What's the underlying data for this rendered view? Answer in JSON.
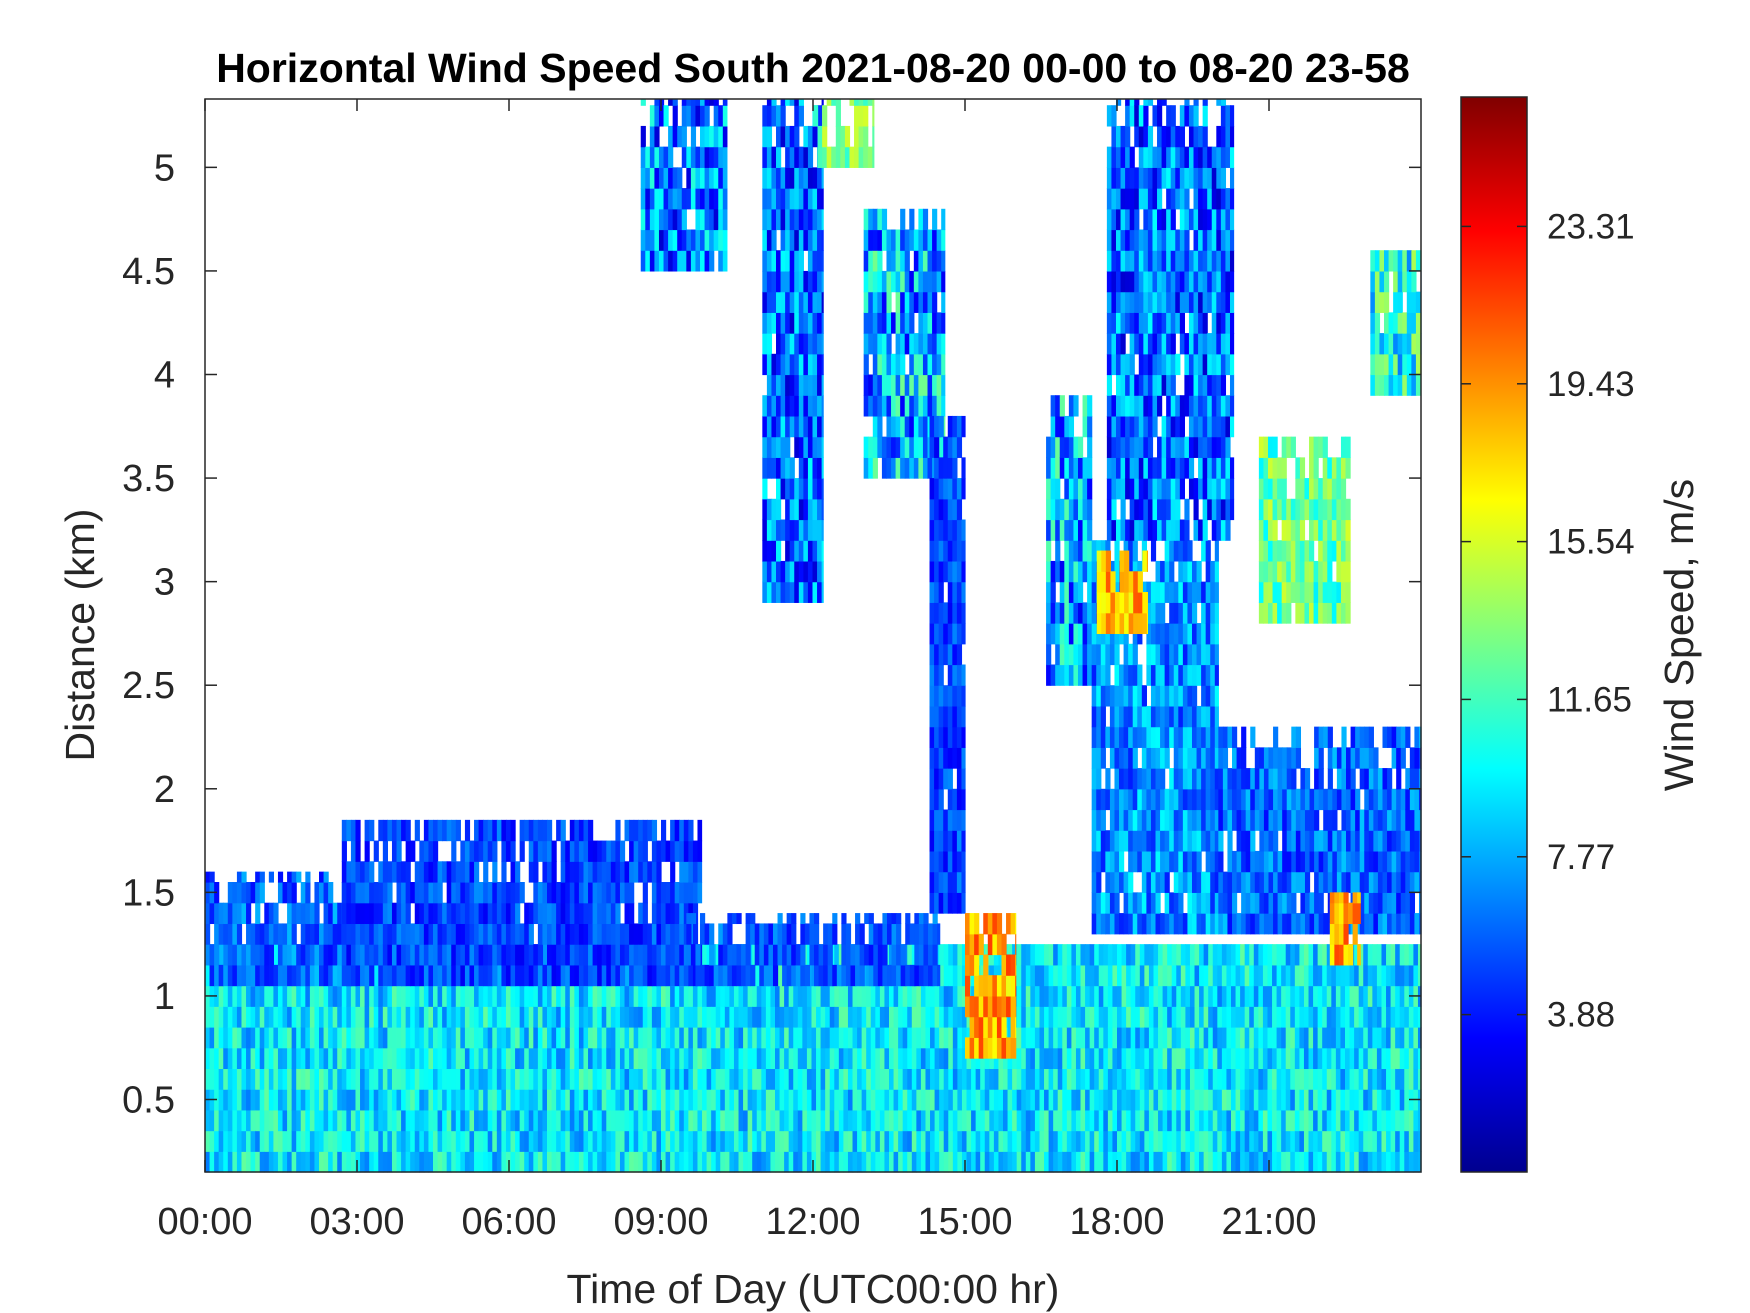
{
  "chart_data": {
    "type": "heatmap",
    "title": "Horizontal Wind Speed South 2021-08-20 00-00 to 08-20 23-58",
    "xlabel": "Time of Day (UTC00:00 hr)",
    "ylabel": "Distance (km)",
    "colorbar_label": "Wind Speed, m/s",
    "xlim": [
      0,
      24
    ],
    "ylim": [
      0.15,
      5.33
    ],
    "colorbar_range": [
      0,
      26.5
    ],
    "colormap": "jet",
    "x_ticks": [
      {
        "value": 0,
        "label": "00:00"
      },
      {
        "value": 3,
        "label": "03:00"
      },
      {
        "value": 6,
        "label": "06:00"
      },
      {
        "value": 9,
        "label": "09:00"
      },
      {
        "value": 12,
        "label": "12:00"
      },
      {
        "value": 15,
        "label": "15:00"
      },
      {
        "value": 18,
        "label": "18:00"
      },
      {
        "value": 21,
        "label": "21:00"
      }
    ],
    "y_ticks": [
      {
        "value": 0.5,
        "label": "0.5"
      },
      {
        "value": 1,
        "label": "1"
      },
      {
        "value": 1.5,
        "label": "1.5"
      },
      {
        "value": 2,
        "label": "2"
      },
      {
        "value": 2.5,
        "label": "2.5"
      },
      {
        "value": 3,
        "label": "3"
      },
      {
        "value": 3.5,
        "label": "3.5"
      },
      {
        "value": 4,
        "label": "4"
      },
      {
        "value": 4.5,
        "label": "4.5"
      },
      {
        "value": 5,
        "label": "5"
      }
    ],
    "colorbar_ticks": [
      {
        "value": 3.88,
        "label": "3.88"
      },
      {
        "value": 7.77,
        "label": "7.77"
      },
      {
        "value": 11.65,
        "label": "11.65"
      },
      {
        "value": 15.54,
        "label": "15.54"
      },
      {
        "value": 19.43,
        "label": "19.43"
      },
      {
        "value": 23.31,
        "label": "23.31"
      }
    ],
    "regions": [
      {
        "name": "boundary-layer",
        "t0": 0,
        "t1": 24,
        "z0": 0.15,
        "z1": 1.25,
        "v": 9.5,
        "var": 3.0
      },
      {
        "name": "morning-upper-layer",
        "t0": 0,
        "t1": 3.0,
        "z0": 1.05,
        "z1": 1.6,
        "v": 6.0,
        "var": 2.5
      },
      {
        "name": "mid-morning-layer",
        "t0": 2.7,
        "t1": 9.8,
        "z0": 1.05,
        "z1": 1.85,
        "v": 5.0,
        "var": 2.0
      },
      {
        "name": "late-morning-layer",
        "t0": 9.5,
        "t1": 14.5,
        "z0": 1.05,
        "z1": 1.4,
        "v": 5.5,
        "var": 2.0
      },
      {
        "name": "upper-plume-a",
        "t0": 8.6,
        "t1": 10.3,
        "z0": 4.5,
        "z1": 5.33,
        "v": 6.5,
        "var": 4.5
      },
      {
        "name": "upper-plume-b",
        "t0": 11.0,
        "t1": 12.2,
        "z0": 2.9,
        "z1": 5.33,
        "v": 6.0,
        "var": 4.0
      },
      {
        "name": "upper-plume-c",
        "t0": 12.0,
        "t1": 13.2,
        "z0": 5.0,
        "z1": 5.33,
        "v": 13.0,
        "var": 2.5
      },
      {
        "name": "upper-plume-d",
        "t0": 13.0,
        "t1": 14.6,
        "z0": 3.5,
        "z1": 4.8,
        "v": 8.0,
        "var": 5.0
      },
      {
        "name": "descending-plume",
        "t0": 14.3,
        "t1": 15.0,
        "z0": 1.4,
        "z1": 3.8,
        "v": 5.0,
        "var": 2.0
      },
      {
        "name": "evening-column-a",
        "t0": 16.6,
        "t1": 17.5,
        "z0": 2.5,
        "z1": 3.9,
        "v": 8.0,
        "var": 5.0
      },
      {
        "name": "evening-column-b",
        "t0": 17.5,
        "t1": 20.0,
        "z0": 1.3,
        "z1": 3.2,
        "v": 7.0,
        "var": 3.0
      },
      {
        "name": "evening-upper",
        "t0": 17.8,
        "t1": 20.3,
        "z0": 3.2,
        "z1": 5.33,
        "v": 6.0,
        "var": 4.0
      },
      {
        "name": "night-layer",
        "t0": 20.0,
        "t1": 24,
        "z0": 1.3,
        "z1": 2.3,
        "v": 6.0,
        "var": 2.5
      },
      {
        "name": "night-upper-a",
        "t0": 20.8,
        "t1": 22.6,
        "z0": 2.8,
        "z1": 3.7,
        "v": 12.5,
        "var": 3.0
      },
      {
        "name": "night-upper-b",
        "t0": 23.0,
        "t1": 24,
        "z0": 3.9,
        "z1": 4.6,
        "v": 10.5,
        "var": 4.0
      },
      {
        "name": "strong-jet-a",
        "t0": 15.0,
        "t1": 16.0,
        "z0": 0.7,
        "z1": 1.4,
        "v": 19.0,
        "var": 3.0
      },
      {
        "name": "strong-jet-b",
        "t0": 17.6,
        "t1": 18.6,
        "z0": 2.75,
        "z1": 3.15,
        "v": 18.5,
        "var": 2.5
      },
      {
        "name": "strong-jet-c",
        "t0": 22.2,
        "t1": 22.8,
        "z0": 1.15,
        "z1": 1.5,
        "v": 19.0,
        "var": 2.5
      }
    ]
  }
}
